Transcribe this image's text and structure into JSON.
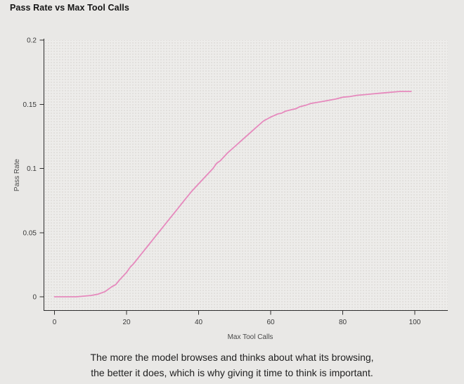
{
  "page": {
    "title": "Pass Rate vs Max Tool Calls",
    "caption_line1": "The more the model browses and thinks about what its browsing,",
    "caption_line2": "the better it does, which is why giving it time to think is important."
  },
  "colors": {
    "page_background": "#e9e8e6",
    "plot_background": "#edecea",
    "plot_dot": "#dedcd9",
    "axis": "#2e2e2e",
    "series": "#e689bd",
    "title_text": "#151515",
    "caption_text": "#212121"
  },
  "chart_data": {
    "type": "line",
    "title": "Pass Rate vs Max Tool Calls",
    "xlabel": "Max Tool Calls",
    "ylabel": "Pass Rate",
    "xlim": [
      0,
      100
    ],
    "ylim": [
      0,
      0.2
    ],
    "x_ticks": [
      0,
      20,
      40,
      60,
      80,
      100
    ],
    "x_tick_labels": [
      "0",
      "20",
      "40",
      "60",
      "80",
      "100"
    ],
    "y_ticks": [
      0,
      0.05,
      0.1,
      0.15,
      0.2
    ],
    "y_tick_labels": [
      "0",
      "0.05",
      "0.1",
      "0.15",
      "0.2"
    ],
    "grid": false,
    "legend": false,
    "series": [
      {
        "name": "pass_rate",
        "color": "#e689bd",
        "points": [
          [
            0,
            0.0
          ],
          [
            3,
            0.0
          ],
          [
            6,
            0.0
          ],
          [
            8,
            0.0005
          ],
          [
            10,
            0.001
          ],
          [
            12,
            0.002
          ],
          [
            14,
            0.004
          ],
          [
            16,
            0.008
          ],
          [
            17,
            0.0095
          ],
          [
            18,
            0.013
          ],
          [
            19,
            0.016
          ],
          [
            20,
            0.019
          ],
          [
            21,
            0.023
          ],
          [
            22,
            0.026
          ],
          [
            24,
            0.033
          ],
          [
            26,
            0.04
          ],
          [
            28,
            0.047
          ],
          [
            30,
            0.054
          ],
          [
            32,
            0.061
          ],
          [
            34,
            0.068
          ],
          [
            36,
            0.075
          ],
          [
            38,
            0.082
          ],
          [
            40,
            0.088
          ],
          [
            42,
            0.094
          ],
          [
            44,
            0.1
          ],
          [
            45,
            0.104
          ],
          [
            46,
            0.106
          ],
          [
            48,
            0.112
          ],
          [
            50,
            0.117
          ],
          [
            52,
            0.122
          ],
          [
            54,
            0.127
          ],
          [
            56,
            0.132
          ],
          [
            58,
            0.137
          ],
          [
            60,
            0.14
          ],
          [
            62,
            0.1425
          ],
          [
            63,
            0.143
          ],
          [
            64,
            0.1445
          ],
          [
            66,
            0.146
          ],
          [
            67,
            0.1465
          ],
          [
            68,
            0.148
          ],
          [
            70,
            0.1495
          ],
          [
            71,
            0.1505
          ],
          [
            72,
            0.151
          ],
          [
            74,
            0.152
          ],
          [
            76,
            0.153
          ],
          [
            78,
            0.154
          ],
          [
            80,
            0.1555
          ],
          [
            82,
            0.156
          ],
          [
            84,
            0.157
          ],
          [
            86,
            0.1575
          ],
          [
            88,
            0.158
          ],
          [
            90,
            0.1585
          ],
          [
            92,
            0.159
          ],
          [
            94,
            0.1595
          ],
          [
            96,
            0.16
          ],
          [
            98,
            0.16
          ],
          [
            99,
            0.16
          ]
        ]
      }
    ]
  }
}
